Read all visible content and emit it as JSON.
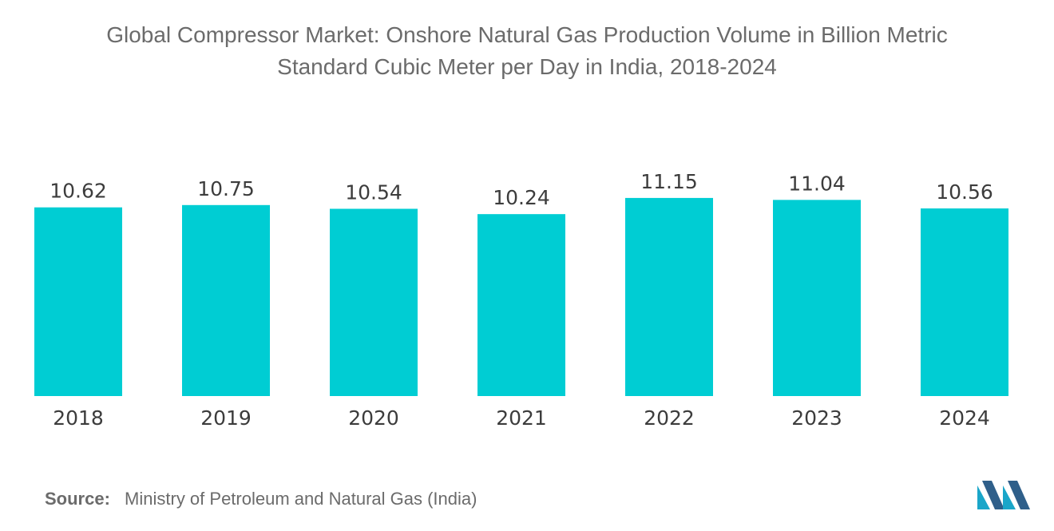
{
  "title_line1": "Global Compressor Market: Onshore Natural Gas Production Volume in Billion Metric",
  "title_line2": "Standard Cubic Meter per Day in India, 2018-2024",
  "source_label": "Source:",
  "source_text": "Ministry of Petroleum and Natural Gas (India)",
  "colors": {
    "bar": "#00cdd3",
    "text": "#3c3c3c",
    "title": "#6b6b6b"
  },
  "chart_data": {
    "type": "bar",
    "title": "Global Compressor Market: Onshore Natural Gas Production Volume in Billion Metric Standard Cubic Meter per Day in India, 2018-2024",
    "categories": [
      "2018",
      "2019",
      "2020",
      "2021",
      "2022",
      "2023",
      "2024"
    ],
    "values": [
      10.62,
      10.75,
      10.54,
      10.24,
      11.15,
      11.04,
      10.56
    ],
    "value_labels": [
      "10.62",
      "10.75",
      "10.54",
      "10.24",
      "11.15",
      "11.04",
      "10.56"
    ],
    "xlabel": "",
    "ylabel": "",
    "grid": false,
    "legend": "none"
  }
}
